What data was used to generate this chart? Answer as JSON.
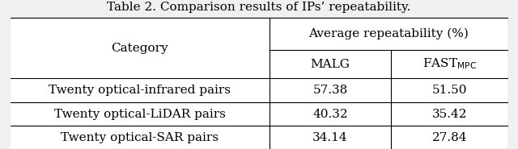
{
  "title": "Table 2. Comparison results of IPs’ repeatability.",
  "rows": [
    [
      "Twenty optical-infrared pairs",
      "57.38",
      "51.50"
    ],
    [
      "Twenty optical-LiDAR pairs",
      "40.32",
      "35.42"
    ],
    [
      "Twenty optical-SAR pairs",
      "34.14",
      "27.84"
    ]
  ],
  "bg_color": "#f0f0f0",
  "font_size": 11,
  "title_font_size": 11
}
